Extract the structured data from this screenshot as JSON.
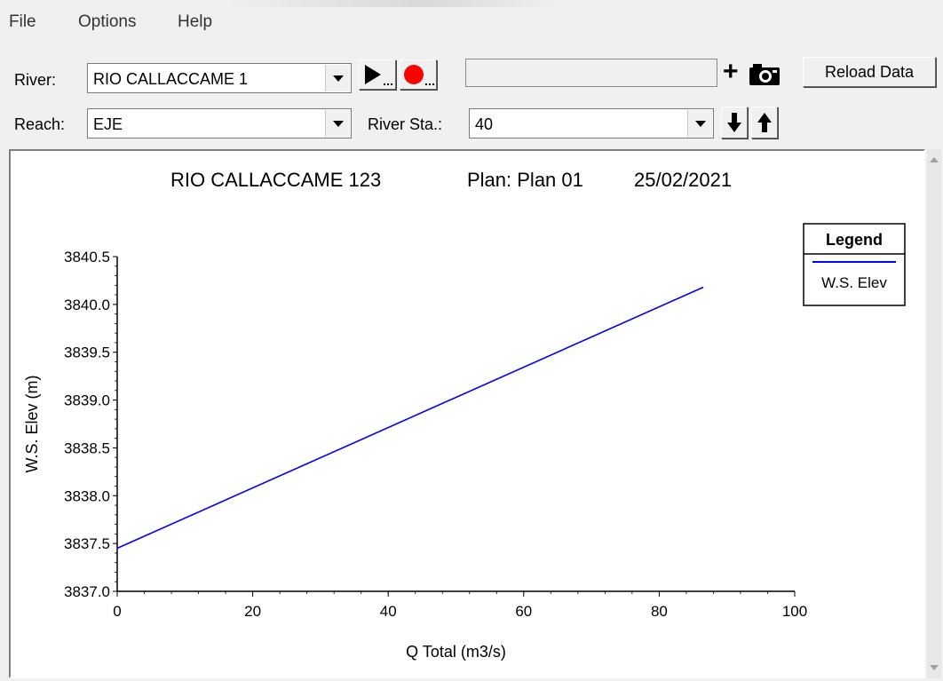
{
  "menu": {
    "items": [
      "File",
      "Options",
      "Help"
    ]
  },
  "toolbar": {
    "river_label": "River:",
    "river_value": "RIO CALLACCAME 1",
    "reach_label": "Reach:",
    "reach_value": "EJE",
    "river_sta_label": "River Sta.:",
    "river_sta_value": "40",
    "filter_value": "",
    "reload_label": "Reload Data",
    "plus_symbol": "+",
    "play_button_icon": "play-icon",
    "record_button_icon": "record-icon",
    "snapshot_icon": "camera-icon",
    "down_arrow_icon": "arrow-down-icon",
    "up_arrow_icon": "arrow-up-icon",
    "record_color": "#ff0000"
  },
  "plot": {
    "title": "RIO CALLACCAME 123",
    "plan": "Plan: Plan 01",
    "date": "25/02/2021"
  },
  "chart_data": {
    "type": "line",
    "xlabel": "Q Total  (m3/s)",
    "ylabel": "W.S. Elev  (m)",
    "xlim": [
      0,
      100
    ],
    "ylim": [
      3837.0,
      3840.5
    ],
    "xticks": [
      "0",
      "20",
      "40",
      "60",
      "80",
      "100"
    ],
    "yticks": [
      "3837.0",
      "3837.5",
      "3838.0",
      "3838.5",
      "3839.0",
      "3839.5",
      "3840.0",
      "3840.5"
    ],
    "legend_title": "Legend",
    "legend_position": "top-right",
    "series": [
      {
        "name": "W.S. Elev",
        "color": "#0000ff",
        "x": [
          0,
          86.5
        ],
        "y": [
          3837.45,
          3840.18
        ]
      }
    ]
  }
}
